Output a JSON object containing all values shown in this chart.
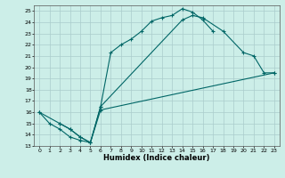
{
  "xlabel": "Humidex (Indice chaleur)",
  "bg_color": "#cceee8",
  "grid_color": "#aacccc",
  "line_color": "#006666",
  "xlim": [
    -0.5,
    23.5
  ],
  "ylim": [
    13,
    25.5
  ],
  "xticks": [
    0,
    1,
    2,
    3,
    4,
    5,
    6,
    7,
    8,
    9,
    10,
    11,
    12,
    13,
    14,
    15,
    16,
    17,
    18,
    19,
    20,
    21,
    22,
    23
  ],
  "yticks": [
    13,
    14,
    15,
    16,
    17,
    18,
    19,
    20,
    21,
    22,
    23,
    24,
    25
  ],
  "line1_x": [
    0,
    1,
    2,
    3,
    4,
    5,
    6,
    7,
    8,
    9,
    10,
    11,
    12,
    13,
    14,
    15,
    16,
    17
  ],
  "line1_y": [
    16,
    15,
    14.5,
    13.8,
    13.5,
    13.3,
    16.5,
    21.3,
    22.0,
    22.5,
    23.2,
    24.1,
    24.4,
    24.6,
    25.2,
    24.9,
    24.2,
    23.2
  ],
  "line2_x": [
    0,
    2,
    3,
    4,
    5,
    6,
    14,
    15,
    16,
    18,
    20,
    21,
    22,
    23
  ],
  "line2_y": [
    16,
    15,
    14.5,
    13.8,
    13.3,
    16.5,
    24.2,
    24.6,
    24.4,
    23.2,
    21.3,
    21.0,
    19.5,
    19.5
  ],
  "line3_x": [
    2,
    3,
    4,
    5,
    6,
    23
  ],
  "line3_y": [
    15,
    14.5,
    13.8,
    13.3,
    16.2,
    19.5
  ]
}
